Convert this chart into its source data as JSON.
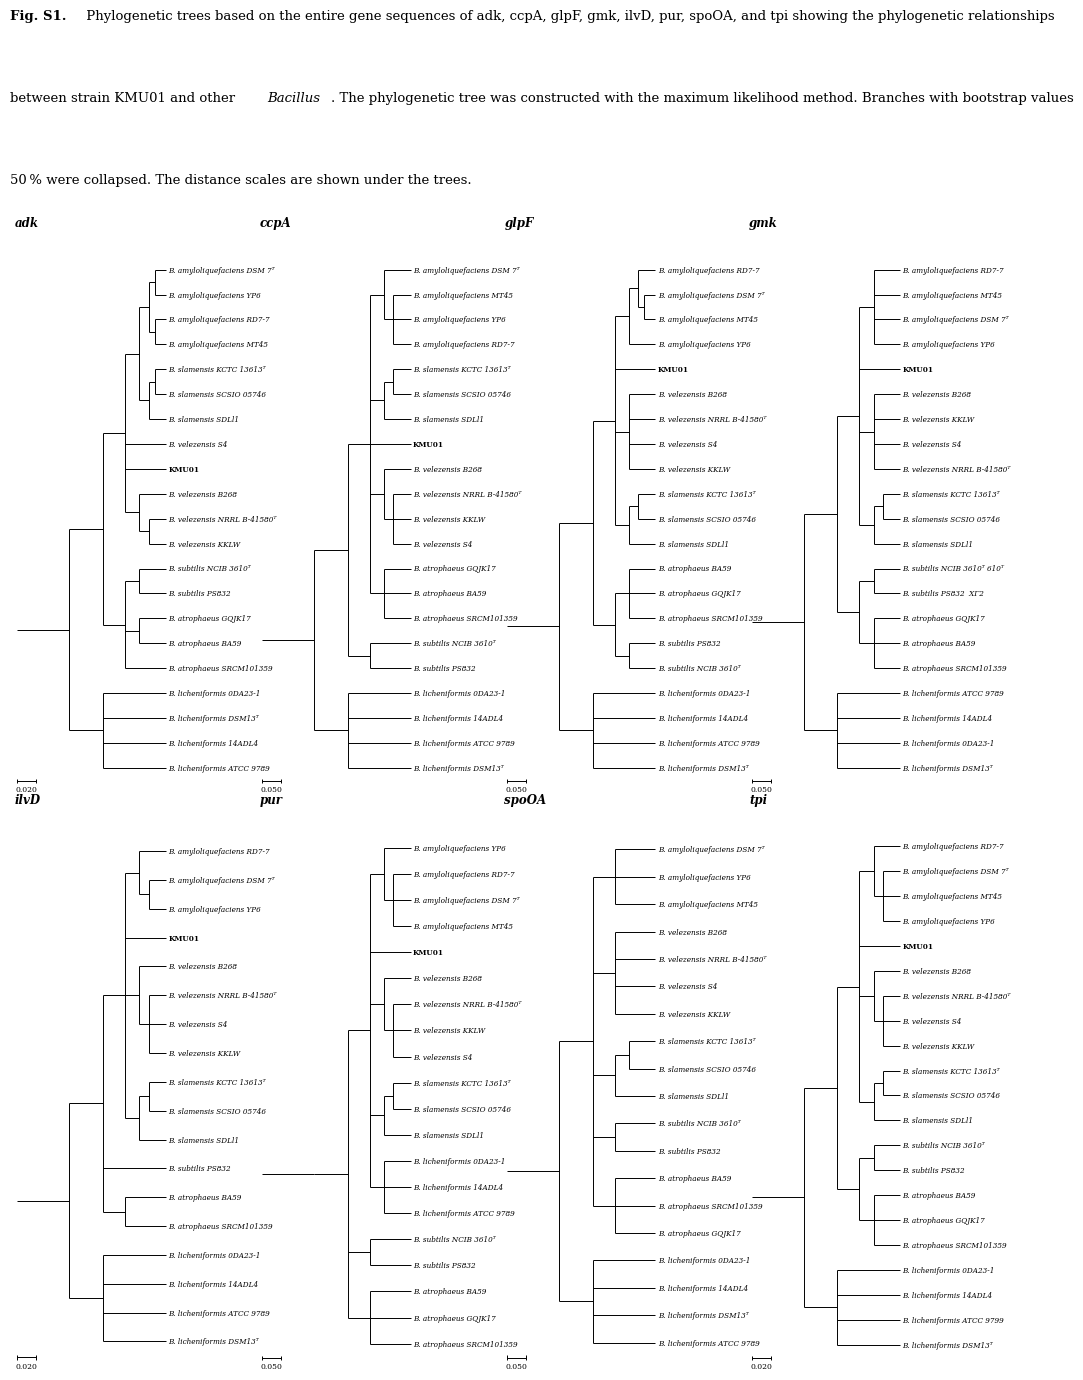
{
  "caption_bold": "Fig. S1.",
  "caption_normal": " Phylogenetic trees based on the entire gene sequences of adk, ccpA, glpF, gmk, ilvD, pur, spoOA, and tpi showing the phylogenetic relationships between strain KMU01 and other ",
  "caption_italic": "Bacillus",
  "caption_end": ". The phylogenetic tree was constructed with the maximum likelihood method. Branches with bootstrap values 50 % were collapsed. The distance scales are shown under the trees.",
  "trees": [
    {
      "name": "adk",
      "scale_label": "0.020",
      "leaves": [
        "B. amyloliquefaciens DSM 7ᵀ",
        "B. amyloliquefaciens YP6",
        "B. amyloliquefaciens RD7-7",
        "B. amyloliquefaciens MT45",
        "B. slamensis KCTC 13613ᵀ",
        "B. slamensis SCSIO 05746",
        "B. slamensis SDLl1",
        "B. velezensis S4",
        "KMU01",
        "B. velezensis B268",
        "B. velezensis NRRL B-41580ᵀ",
        "B. velezensis KKLW",
        "B. subtilis NCIB 3610ᵀ",
        "B. subtilis PS832",
        "B. atrophaeus GQJK17",
        "B. atrophaeus BA59",
        "B. atrophaeus SRCM101359",
        "B. licheniformis 0DA23-1",
        "B. licheniformis DSM13ᵀ",
        "B. licheniformis 14ADL4",
        "B. licheniformis ATCC 9789"
      ],
      "structure": "adk"
    },
    {
      "name": "ccpA",
      "scale_label": "0.050",
      "leaves": [
        "B. amyloliquefaciens DSM 7ᵀ",
        "B. amyloliquefaciens MT45",
        "B. amyloliquefaciens YP6",
        "B. amyloliquefaciens RD7-7",
        "B. slamensis KCTC 13613ᵀ",
        "B. slamensis SCSIO 05746",
        "B. slamensis SDLl1",
        "KMU01",
        "B. velezensis B268",
        "B. velezensis NRRL B-41580ᵀ",
        "B. velezensis KKLW",
        "B. velezensis S4",
        "B. atrophaeus GQJK17",
        "B. atrophaeus BA59",
        "B. atrophaeus SRCM101359",
        "B. subtilis NCIB 3610ᵀ",
        "B. subtilis PS832",
        "B. licheniformis 0DA23-1",
        "B. licheniformis 14ADL4",
        "B. licheniformis ATCC 9789",
        "B. licheniformis DSM13ᵀ"
      ],
      "structure": "ccpA"
    },
    {
      "name": "glpF",
      "scale_label": "0.050",
      "leaves": [
        "B. amyloliquefaciens RD7-7",
        "B. amyloliquefaciens DSM 7ᵀ",
        "B. amyloliquefaciens MT45",
        "B. amyloliquefaciens YP6",
        "KMU01",
        "B. velezensis B268",
        "B. velezensis NRRL B-41580ᵀ",
        "B. velezensis S4",
        "B. velezensis KKLW",
        "B. slamensis KCTC 13613ᵀ",
        "B. slamensis SCSIO 05746",
        "B. slamensis SDLl1",
        "B. atrophaeus BA59",
        "B. atrophaeus GQJK17",
        "B. atrophaeus SRCM101359",
        "B. subtilis PS832",
        "B. subtilis NCIB 3610ᵀ",
        "B. licheniformis 0DA23-1",
        "B. licheniformis 14ADL4",
        "B. licheniformis ATCC 9789",
        "B. licheniformis DSM13ᵀ"
      ],
      "structure": "glpF"
    },
    {
      "name": "gmk",
      "scale_label": "0.050",
      "leaves": [
        "B. amyloliquefaciens RD7-7",
        "B. amyloliquefaciens MT45",
        "B. amyloliquefaciens DSM 7ᵀ",
        "B. amyloliquefaciens YP6",
        "KMU01",
        "B. velezensis B268",
        "B. velezensis KKLW",
        "B. velezensis S4",
        "B. velezensis NRRL B-41580ᵀ",
        "B. slamensis KCTC 13613ᵀ",
        "B. slamensis SCSIO 05746",
        "B. slamensis SDLl1",
        "B. subtilis NCIB 3610ᵀ 610ᵀ",
        "B. subtilis PS832  XΓ2",
        "B. atrophaeus GQJK17",
        "B. atrophaeus BA59",
        "B. atrophaeus SRCM101359",
        "B. licheniformis ATCC 9789",
        "B. licheniformis 14ADL4",
        "B. licheniformis 0DA23-1",
        "B. licheniformis DSM13ᵀ"
      ],
      "structure": "gmk"
    },
    {
      "name": "ilvD",
      "scale_label": "0.020",
      "leaves": [
        "B. amyloliquefaciens RD7-7",
        "B. amyloliquefaciens DSM 7ᵀ",
        "B. amyloliquefaciens YP6",
        "KMU01",
        "B. velezensis B268",
        "B. velezensis NRRL B-41580ᵀ",
        "B. velezensis S4",
        "B. velezensis KKLW",
        "B. slamensis KCTC 13613ᵀ",
        "B. slamensis SCSIO 05746",
        "B. slamensis SDLl1",
        "B. subtilis PS832",
        "B. atrophaeus BA59",
        "B. atrophaeus SRCM101359",
        "B. licheniformis 0DA23-1",
        "B. licheniformis 14ADL4",
        "B. licheniformis ATCC 9789",
        "B. licheniformis DSM13ᵀ"
      ],
      "structure": "ilvD"
    },
    {
      "name": "pur",
      "scale_label": "0.050",
      "leaves": [
        "B. amyloliquefaciens YP6",
        "B. amyloliquefaciens RD7-7",
        "B. amyloliquefaciens DSM 7ᵀ",
        "B. amyloliquefaciens MT45",
        "KMU01",
        "B. velezensis B268",
        "B. velezensis NRRL B-41580ᵀ",
        "B. velezensis KKLW",
        "B. velezensis S4",
        "B. slamensis KCTC 13613ᵀ",
        "B. slamensis SCSIO 05746",
        "B. slamensis SDLl1",
        "B. licheniformis 0DA23-1",
        "B. licheniformis 14ADL4",
        "B. licheniformis ATCC 9789",
        "B. subtilis NCIB 3610ᵀ",
        "B. subtilis PS832",
        "B. atrophaeus BA59",
        "B. atrophaeus GQJK17",
        "B. atrophaeus SRCM101359"
      ],
      "structure": "pur"
    },
    {
      "name": "spoOA",
      "scale_label": "0.050",
      "leaves": [
        "B. amyloliquefaciens DSM 7ᵀ",
        "B. amyloliquefaciens YP6",
        "B. amyloliquefaciens MT45",
        "B. velezensis B268",
        "B. velezensis NRRL B-41580ᵀ",
        "B. velezensis S4",
        "B. velezensis KKLW",
        "B. slamensis KCTC 13613ᵀ",
        "B. slamensis SCSIO 05746",
        "B. slamensis SDLl1",
        "B. subtilis NCIB 3610ᵀ",
        "B. subtilis PS832",
        "B. atrophaeus BA59",
        "B. atrophaeus SRCM101359",
        "B. atrophaeus GQJK17",
        "B. licheniformis 0DA23-1",
        "B. licheniformis 14ADL4",
        "B. licheniformis DSM13ᵀ",
        "B. licheniformis ATCC 9789"
      ],
      "structure": "spoOA"
    },
    {
      "name": "tpi",
      "scale_label": "0.020",
      "leaves": [
        "B. amyloliquefaciens RD7-7",
        "B. amyloliquefaciens DSM 7ᵀ",
        "B. amyloliquefaciens MT45",
        "B. amyloliquefaciens YP6",
        "KMU01",
        "B. velezensis B268",
        "B. velezensis NRRL B-41580ᵀ",
        "B. velezensis S4",
        "B. velezensis KKLW",
        "B. slamensis KCTC 13613ᵀ",
        "B. slamensis SCSIO 05746",
        "B. slamensis SDLl1",
        "B. subtilis NCIB 3610ᵀ",
        "B. subtilis PS832",
        "B. atrophaeus BA59",
        "B. atrophaeus GQJK17",
        "B. atrophaeus SRCM101359",
        "B. licheniformis 0DA23-1",
        "B. licheniformis 14ADL4",
        "B. licheniformis ATCC 9799",
        "B. licheniformis DSM13ᵀ"
      ],
      "structure": "tpi"
    }
  ]
}
